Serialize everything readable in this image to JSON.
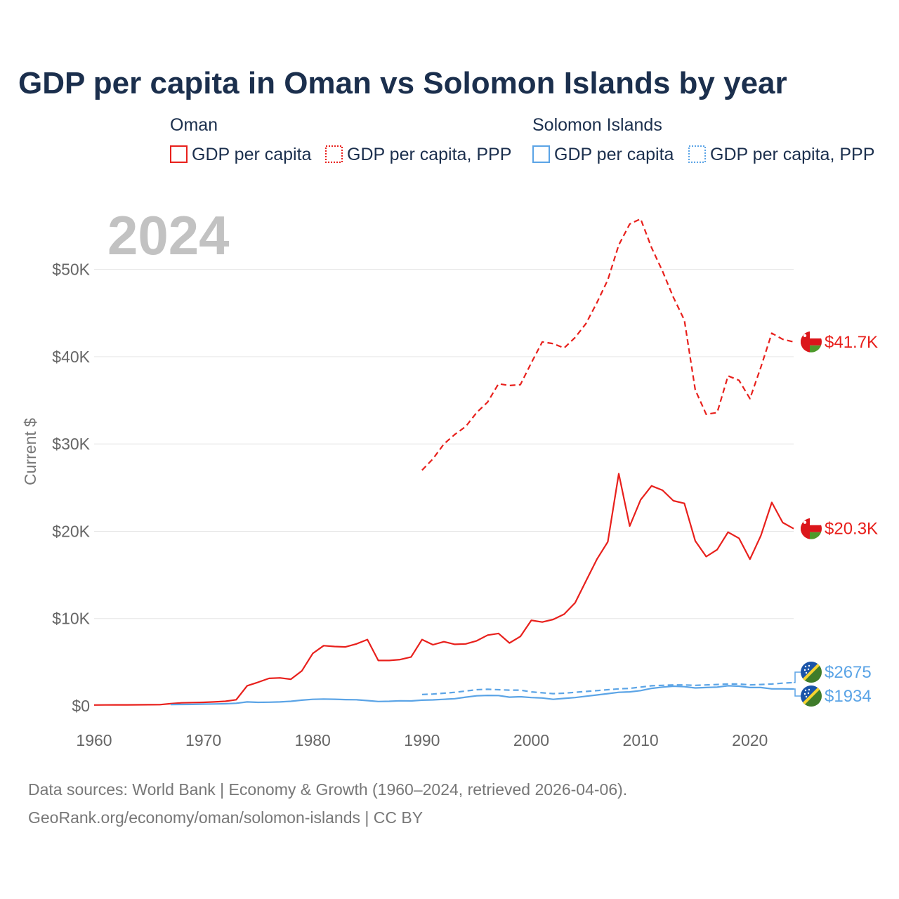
{
  "title": "GDP per capita in Oman vs Solomon Islands by year",
  "year_watermark": "2024",
  "legend": {
    "groups": [
      {
        "country": "Oman",
        "color": "#e8201c",
        "items": [
          {
            "label": "GDP per capita",
            "style": "solid"
          },
          {
            "label": "GDP per capita, PPP",
            "style": "dotted"
          }
        ]
      },
      {
        "country": "Solomon Islands",
        "color": "#5ba4e6",
        "items": [
          {
            "label": "GDP per capita",
            "style": "solid"
          },
          {
            "label": "GDP per capita, PPP",
            "style": "dotted"
          }
        ]
      }
    ]
  },
  "footer": {
    "line1": "Data sources: World Bank | Economy & Growth (1960–2024, retrieved 2026-04-06).",
    "line2": "GeoRank.org/economy/oman/solomon-islands | CC BY"
  },
  "chart_data": {
    "type": "line",
    "title": "GDP per capita in Oman vs Solomon Islands by year",
    "xlabel": "",
    "ylabel": "Current $",
    "xlim": [
      1960,
      2024
    ],
    "ylim": [
      0,
      55000
    ],
    "x_ticks": [
      1960,
      1970,
      1980,
      1990,
      2000,
      2010,
      2020
    ],
    "x_tick_labels": [
      "1960",
      "1970",
      "1980",
      "1990",
      "2000",
      "2010",
      "2020"
    ],
    "y_ticks": [
      0,
      10000,
      20000,
      30000,
      40000,
      50000
    ],
    "y_tick_labels": [
      "$0",
      "$10K",
      "$20K",
      "$30K",
      "$40K",
      "$50K"
    ],
    "grid": true,
    "series": [
      {
        "name": "Oman GDP per capita",
        "color": "#e8201c",
        "dash": "solid",
        "end_label": "$20.3K",
        "points": [
          [
            1960,
            100
          ],
          [
            1961,
            105
          ],
          [
            1962,
            110
          ],
          [
            1963,
            115
          ],
          [
            1964,
            120
          ],
          [
            1965,
            125
          ],
          [
            1966,
            140
          ],
          [
            1967,
            250
          ],
          [
            1968,
            350
          ],
          [
            1969,
            380
          ],
          [
            1970,
            400
          ],
          [
            1971,
            450
          ],
          [
            1972,
            520
          ],
          [
            1973,
            700
          ],
          [
            1974,
            2300
          ],
          [
            1975,
            2700
          ],
          [
            1976,
            3150
          ],
          [
            1977,
            3200
          ],
          [
            1978,
            3050
          ],
          [
            1979,
            4000
          ],
          [
            1980,
            6000
          ],
          [
            1981,
            6900
          ],
          [
            1982,
            6800
          ],
          [
            1983,
            6750
          ],
          [
            1984,
            7100
          ],
          [
            1985,
            7600
          ],
          [
            1986,
            5200
          ],
          [
            1987,
            5200
          ],
          [
            1988,
            5300
          ],
          [
            1989,
            5600
          ],
          [
            1990,
            7600
          ],
          [
            1991,
            7000
          ],
          [
            1992,
            7350
          ],
          [
            1993,
            7050
          ],
          [
            1994,
            7100
          ],
          [
            1995,
            7450
          ],
          [
            1996,
            8100
          ],
          [
            1997,
            8300
          ],
          [
            1998,
            7200
          ],
          [
            1999,
            7950
          ],
          [
            2000,
            9800
          ],
          [
            2001,
            9600
          ],
          [
            2002,
            9900
          ],
          [
            2003,
            10500
          ],
          [
            2004,
            11800
          ],
          [
            2005,
            14300
          ],
          [
            2006,
            16800
          ],
          [
            2007,
            18800
          ],
          [
            2008,
            26600
          ],
          [
            2009,
            20600
          ],
          [
            2010,
            23600
          ],
          [
            2011,
            25200
          ],
          [
            2012,
            24700
          ],
          [
            2013,
            23500
          ],
          [
            2014,
            23200
          ],
          [
            2015,
            18900
          ],
          [
            2016,
            17100
          ],
          [
            2017,
            17900
          ],
          [
            2018,
            19900
          ],
          [
            2019,
            19200
          ],
          [
            2020,
            16800
          ],
          [
            2021,
            19500
          ],
          [
            2022,
            23300
          ],
          [
            2023,
            21000
          ],
          [
            2024,
            20300
          ]
        ]
      },
      {
        "name": "Oman GDP per capita, PPP",
        "color": "#e8201c",
        "dash": "dashed",
        "end_label": "$41.7K",
        "points": [
          [
            1990,
            27000
          ],
          [
            1991,
            28300
          ],
          [
            1992,
            30000
          ],
          [
            1993,
            31100
          ],
          [
            1994,
            32000
          ],
          [
            1995,
            33600
          ],
          [
            1996,
            34800
          ],
          [
            1997,
            36900
          ],
          [
            1998,
            36700
          ],
          [
            1999,
            36800
          ],
          [
            2000,
            39300
          ],
          [
            2001,
            41700
          ],
          [
            2002,
            41500
          ],
          [
            2003,
            41000
          ],
          [
            2004,
            42200
          ],
          [
            2005,
            43800
          ],
          [
            2006,
            46200
          ],
          [
            2007,
            48800
          ],
          [
            2008,
            52800
          ],
          [
            2009,
            55200
          ],
          [
            2010,
            55800
          ],
          [
            2011,
            52500
          ],
          [
            2012,
            49800
          ],
          [
            2013,
            46800
          ],
          [
            2014,
            44200
          ],
          [
            2015,
            36200
          ],
          [
            2016,
            33400
          ],
          [
            2017,
            33600
          ],
          [
            2018,
            37800
          ],
          [
            2019,
            37300
          ],
          [
            2020,
            35200
          ],
          [
            2021,
            38800
          ],
          [
            2022,
            42700
          ],
          [
            2023,
            42000
          ],
          [
            2024,
            41700
          ]
        ]
      },
      {
        "name": "Solomon Islands GDP per capita",
        "color": "#5ba4e6",
        "dash": "solid",
        "end_label": "$1934",
        "points": [
          [
            1967,
            150
          ],
          [
            1968,
            160
          ],
          [
            1969,
            170
          ],
          [
            1970,
            200
          ],
          [
            1971,
            220
          ],
          [
            1972,
            240
          ],
          [
            1973,
            300
          ],
          [
            1974,
            450
          ],
          [
            1975,
            400
          ],
          [
            1976,
            420
          ],
          [
            1977,
            450
          ],
          [
            1978,
            520
          ],
          [
            1979,
            650
          ],
          [
            1980,
            750
          ],
          [
            1981,
            780
          ],
          [
            1982,
            760
          ],
          [
            1983,
            720
          ],
          [
            1984,
            700
          ],
          [
            1985,
            600
          ],
          [
            1986,
            500
          ],
          [
            1987,
            520
          ],
          [
            1988,
            580
          ],
          [
            1989,
            560
          ],
          [
            1990,
            650
          ],
          [
            1991,
            680
          ],
          [
            1992,
            750
          ],
          [
            1993,
            820
          ],
          [
            1994,
            1000
          ],
          [
            1995,
            1150
          ],
          [
            1996,
            1200
          ],
          [
            1997,
            1180
          ],
          [
            1998,
            1000
          ],
          [
            1999,
            1050
          ],
          [
            2000,
            950
          ],
          [
            2001,
            900
          ],
          [
            2002,
            750
          ],
          [
            2003,
            850
          ],
          [
            2004,
            950
          ],
          [
            2005,
            1100
          ],
          [
            2006,
            1250
          ],
          [
            2007,
            1400
          ],
          [
            2008,
            1550
          ],
          [
            2009,
            1600
          ],
          [
            2010,
            1750
          ],
          [
            2011,
            2000
          ],
          [
            2012,
            2150
          ],
          [
            2013,
            2250
          ],
          [
            2014,
            2200
          ],
          [
            2015,
            2050
          ],
          [
            2016,
            2100
          ],
          [
            2017,
            2150
          ],
          [
            2018,
            2300
          ],
          [
            2019,
            2250
          ],
          [
            2020,
            2100
          ],
          [
            2021,
            2100
          ],
          [
            2022,
            1950
          ],
          [
            2023,
            1950
          ],
          [
            2024,
            1934
          ]
        ]
      },
      {
        "name": "Solomon Islands GDP per capita, PPP",
        "color": "#5ba4e6",
        "dash": "dashed",
        "end_label": "$2675",
        "points": [
          [
            1990,
            1300
          ],
          [
            1991,
            1350
          ],
          [
            1992,
            1450
          ],
          [
            1993,
            1550
          ],
          [
            1994,
            1700
          ],
          [
            1995,
            1850
          ],
          [
            1996,
            1900
          ],
          [
            1997,
            1850
          ],
          [
            1998,
            1800
          ],
          [
            1999,
            1800
          ],
          [
            2000,
            1600
          ],
          [
            2001,
            1500
          ],
          [
            2002,
            1400
          ],
          [
            2003,
            1450
          ],
          [
            2004,
            1550
          ],
          [
            2005,
            1650
          ],
          [
            2006,
            1750
          ],
          [
            2007,
            1850
          ],
          [
            2008,
            1950
          ],
          [
            2009,
            2000
          ],
          [
            2010,
            2150
          ],
          [
            2011,
            2300
          ],
          [
            2012,
            2350
          ],
          [
            2013,
            2400
          ],
          [
            2014,
            2400
          ],
          [
            2015,
            2350
          ],
          [
            2016,
            2400
          ],
          [
            2017,
            2450
          ],
          [
            2018,
            2500
          ],
          [
            2019,
            2500
          ],
          [
            2020,
            2400
          ],
          [
            2021,
            2450
          ],
          [
            2022,
            2500
          ],
          [
            2023,
            2600
          ],
          [
            2024,
            2675
          ]
        ]
      }
    ]
  }
}
